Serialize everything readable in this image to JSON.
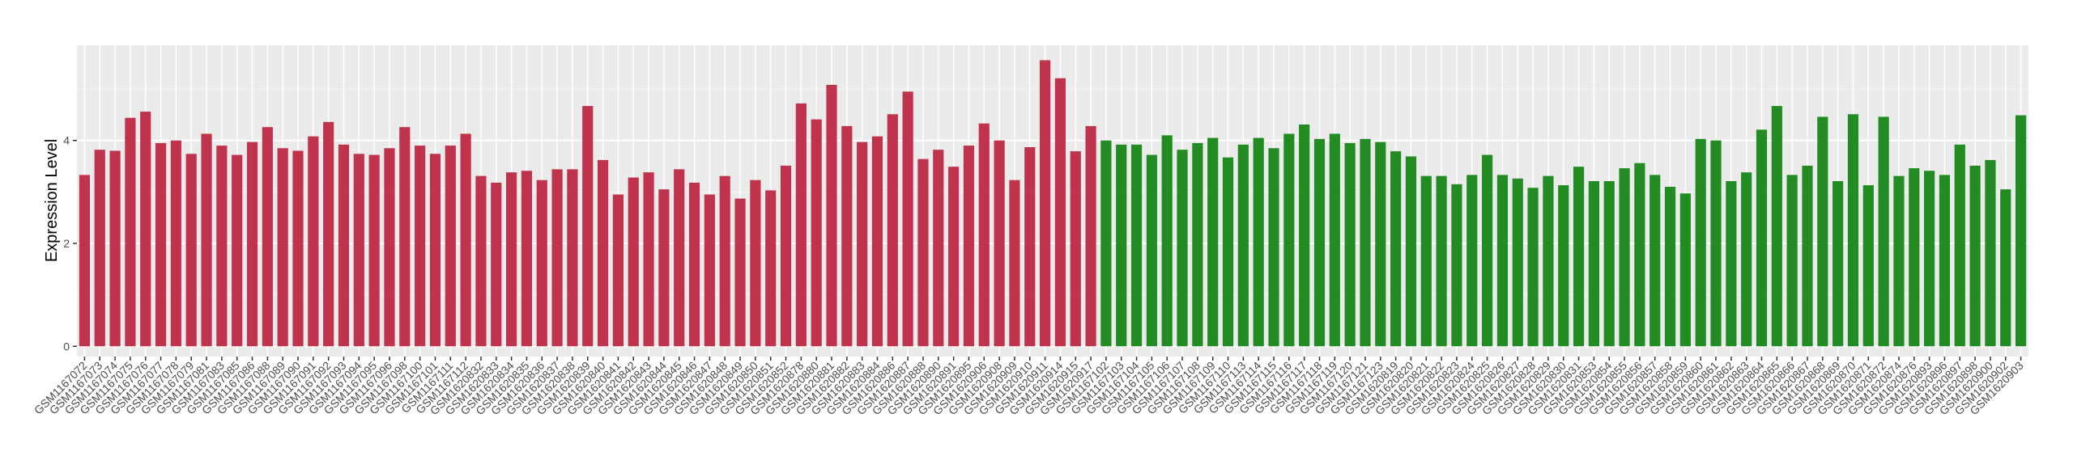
{
  "chart_data": {
    "type": "bar",
    "y_label": "Expression Level",
    "categories": [
      "GSM1167072",
      "GSM1167073",
      "GSM1167074",
      "GSM1167075",
      "GSM1167076",
      "GSM1167077",
      "GSM1167078",
      "GSM1167079",
      "GSM1167081",
      "GSM1167083",
      "GSM1167085",
      "GSM1167086",
      "GSM1167088",
      "GSM1167089",
      "GSM1167090",
      "GSM1167091",
      "GSM1167092",
      "GSM1167093",
      "GSM1167094",
      "GSM1167095",
      "GSM1167096",
      "GSM1167098",
      "GSM1167100",
      "GSM1167101",
      "GSM1167111",
      "GSM1167112",
      "GSM1620832",
      "GSM1620833",
      "GSM1620834",
      "GSM1620835",
      "GSM1620836",
      "GSM1620837",
      "GSM1620838",
      "GSM1620839",
      "GSM1620840",
      "GSM1620841",
      "GSM1620842",
      "GSM1620843",
      "GSM1620844",
      "GSM1620845",
      "GSM1620846",
      "GSM1620847",
      "GSM1620848",
      "GSM1620849",
      "GSM1620850",
      "GSM1620851",
      "GSM1620852",
      "GSM1620878",
      "GSM1620880",
      "GSM1620881",
      "GSM1620882",
      "GSM1620883",
      "GSM1620884",
      "GSM1620886",
      "GSM1620887",
      "GSM1620888",
      "GSM1620890",
      "GSM1620891",
      "GSM1620895",
      "GSM1620906",
      "GSM1620908",
      "GSM1620909",
      "GSM1620910",
      "GSM1620911",
      "GSM1620914",
      "GSM1620915",
      "GSM1620917",
      "GSM1167102",
      "GSM1167103",
      "GSM1167104",
      "GSM1167105",
      "GSM1167106",
      "GSM1167107",
      "GSM1167108",
      "GSM1167109",
      "GSM1167110",
      "GSM1167113",
      "GSM1167114",
      "GSM1167115",
      "GSM1167116",
      "GSM1167117",
      "GSM1167118",
      "GSM1167119",
      "GSM1167120",
      "GSM1167121",
      "GSM1167123",
      "GSM1620819",
      "GSM1620820",
      "GSM1620821",
      "GSM1620822",
      "GSM1620823",
      "GSM1620824",
      "GSM1620825",
      "GSM1620826",
      "GSM1620827",
      "GSM1620828",
      "GSM1620829",
      "GSM1620830",
      "GSM1620831",
      "GSM1620853",
      "GSM1620854",
      "GSM1620855",
      "GSM1620856",
      "GSM1620857",
      "GSM1620858",
      "GSM1620859",
      "GSM1620860",
      "GSM1620861",
      "GSM1620862",
      "GSM1620863",
      "GSM1620864",
      "GSM1620865",
      "GSM1620866",
      "GSM1620867",
      "GSM1620868",
      "GSM1620869",
      "GSM1620870",
      "GSM1620871",
      "GSM1620872",
      "GSM1620874",
      "GSM1620876",
      "GSM1620893",
      "GSM1620896",
      "GSM1620897",
      "GSM1620898",
      "GSM1620900",
      "GSM1620902",
      "GSM1620903"
    ],
    "values": [
      3.33,
      3.82,
      3.8,
      4.44,
      4.56,
      3.95,
      4.0,
      3.74,
      4.13,
      3.9,
      3.72,
      3.97,
      4.26,
      3.85,
      3.8,
      4.08,
      4.36,
      3.92,
      3.74,
      3.72,
      3.85,
      4.26,
      3.9,
      3.74,
      3.9,
      4.13,
      3.31,
      3.18,
      3.38,
      3.41,
      3.23,
      3.44,
      3.44,
      4.67,
      3.62,
      2.95,
      3.28,
      3.38,
      3.05,
      3.44,
      3.18,
      2.95,
      3.31,
      2.87,
      3.23,
      3.03,
      3.51,
      4.72,
      4.41,
      5.08,
      4.28,
      3.97,
      4.08,
      4.51,
      4.95,
      3.64,
      3.82,
      3.49,
      3.9,
      4.33,
      4.0,
      3.23,
      3.87,
      5.56,
      5.21,
      3.79,
      4.28,
      4.0,
      3.92,
      3.92,
      3.72,
      4.1,
      3.82,
      3.95,
      4.05,
      3.67,
      3.92,
      4.05,
      3.85,
      4.13,
      4.31,
      4.03,
      4.13,
      3.95,
      4.03,
      3.97,
      3.79,
      3.69,
      3.31,
      3.31,
      3.15,
      3.33,
      3.72,
      3.33,
      3.26,
      3.08,
      3.31,
      3.13,
      3.49,
      3.21,
      3.21,
      3.46,
      3.56,
      3.33,
      3.1,
      2.97,
      4.03,
      4.0,
      3.21,
      3.38,
      4.21,
      4.67,
      3.33,
      3.51,
      4.46,
      3.21,
      4.51,
      3.13,
      4.46,
      3.31,
      3.46,
      3.41,
      3.33,
      3.92,
      3.51,
      3.62,
      3.05,
      4.49
    ],
    "colors": [
      "#c0334d",
      "#c0334d",
      "#c0334d",
      "#c0334d",
      "#c0334d",
      "#c0334d",
      "#c0334d",
      "#c0334d",
      "#c0334d",
      "#c0334d",
      "#c0334d",
      "#c0334d",
      "#c0334d",
      "#c0334d",
      "#c0334d",
      "#c0334d",
      "#c0334d",
      "#c0334d",
      "#c0334d",
      "#c0334d",
      "#c0334d",
      "#c0334d",
      "#c0334d",
      "#c0334d",
      "#c0334d",
      "#c0334d",
      "#c0334d",
      "#c0334d",
      "#c0334d",
      "#c0334d",
      "#c0334d",
      "#c0334d",
      "#c0334d",
      "#c0334d",
      "#c0334d",
      "#c0334d",
      "#c0334d",
      "#c0334d",
      "#c0334d",
      "#c0334d",
      "#c0334d",
      "#c0334d",
      "#c0334d",
      "#c0334d",
      "#c0334d",
      "#c0334d",
      "#c0334d",
      "#c0334d",
      "#c0334d",
      "#c0334d",
      "#c0334d",
      "#c0334d",
      "#c0334d",
      "#c0334d",
      "#c0334d",
      "#c0334d",
      "#c0334d",
      "#c0334d",
      "#c0334d",
      "#c0334d",
      "#c0334d",
      "#c0334d",
      "#c0334d",
      "#c0334d",
      "#c0334d",
      "#c0334d",
      "#c0334d",
      "#228b22",
      "#228b22",
      "#228b22",
      "#228b22",
      "#228b22",
      "#228b22",
      "#228b22",
      "#228b22",
      "#228b22",
      "#228b22",
      "#228b22",
      "#228b22",
      "#228b22",
      "#228b22",
      "#228b22",
      "#228b22",
      "#228b22",
      "#228b22",
      "#228b22",
      "#228b22",
      "#228b22",
      "#228b22",
      "#228b22",
      "#228b22",
      "#228b22",
      "#228b22",
      "#228b22",
      "#228b22",
      "#228b22",
      "#228b22",
      "#228b22",
      "#228b22",
      "#228b22",
      "#228b22",
      "#228b22",
      "#228b22",
      "#228b22",
      "#228b22",
      "#228b22",
      "#228b22",
      "#228b22",
      "#228b22",
      "#228b22",
      "#228b22",
      "#228b22",
      "#228b22",
      "#228b22",
      "#228b22",
      "#228b22",
      "#228b22",
      "#228b22",
      "#228b22",
      "#228b22",
      "#228b22",
      "#228b22",
      "#228b22",
      "#228b22",
      "#228b22",
      "#228b22",
      "#228b22",
      "#228b22"
    ],
    "ylim": [
      -0.2,
      5.85
    ],
    "yticks": [
      0,
      2,
      4
    ],
    "grid": true
  }
}
